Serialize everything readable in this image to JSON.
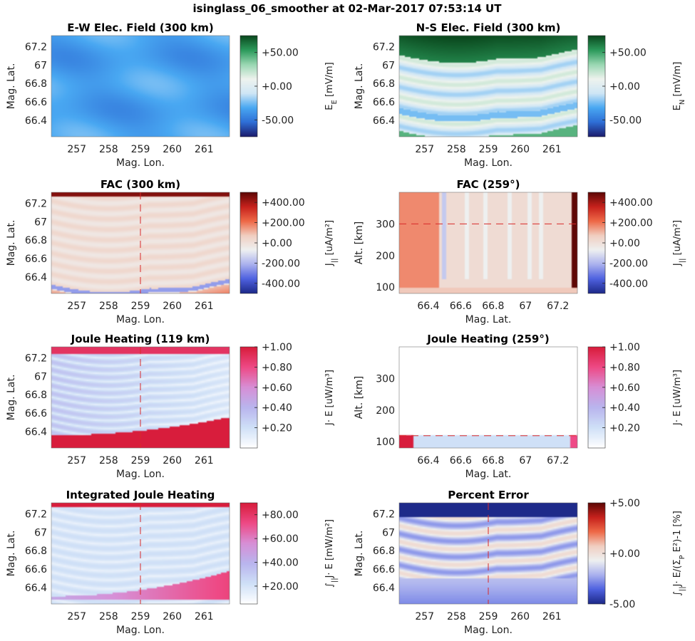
{
  "figure": {
    "title": "isinglass_06_smoother at 02-Mar-2017 07:53:14 UT"
  },
  "colors": {
    "green_div": [
      "#1c1d6e",
      "#2f6fd6",
      "#49a8f2",
      "#cfe6f5",
      "#eef3ee",
      "#9ad7b3",
      "#2c9b5c",
      "#0b4a1f"
    ],
    "red_div": [
      "#1e2a8a",
      "#4f62e0",
      "#aab1ee",
      "#eef0f0",
      "#f0cfc2",
      "#ee6a48",
      "#c8221d",
      "#5f0806"
    ],
    "pink_seq": [
      "#ffffff",
      "#cfe0f7",
      "#b9b5ee",
      "#d78fd6",
      "#ee4a86",
      "#d81d3c"
    ]
  },
  "chart_data": [
    {
      "type": "heatmap",
      "id": "ew",
      "title": "E-W Elec. Field (300 km)",
      "xlabel": "Mag. Lon.",
      "ylabel": "Mag. Lat.",
      "xticks": [
        "257",
        "258",
        "259",
        "260",
        "261"
      ],
      "xtick_values": [
        257,
        258,
        259,
        260,
        261
      ],
      "yticks": [
        "67.2",
        "67",
        "66.8",
        "66.6",
        "66.4"
      ],
      "ytick_values": [
        67.2,
        67.0,
        66.8,
        66.6,
        66.4
      ],
      "xlim": [
        256.2,
        261.8
      ],
      "ylim": [
        66.22,
        67.32
      ],
      "colorbar": {
        "label_main": "E",
        "label_sub": "E",
        "label_unit": " [mV/m]",
        "ticks": [
          "+50.00",
          "+0.00",
          "-50.00"
        ],
        "tick_values": [
          50,
          0,
          -50
        ],
        "range": [
          -75,
          75
        ],
        "palette": "green_div"
      },
      "field_note": "uniform ~ -35 mV/m"
    },
    {
      "type": "heatmap",
      "id": "ns",
      "title": "N-S Elec. Field (300 km)",
      "xlabel": "Mag. Lon.",
      "ylabel": "Mag. Lat.",
      "xticks": [
        "257",
        "258",
        "259",
        "260",
        "261"
      ],
      "xtick_values": [
        257,
        258,
        259,
        260,
        261
      ],
      "yticks": [
        "67.2",
        "67",
        "66.8",
        "66.6",
        "66.4"
      ],
      "ytick_values": [
        67.2,
        67.0,
        66.8,
        66.6,
        66.4
      ],
      "xlim": [
        256.2,
        261.8
      ],
      "ylim": [
        66.22,
        67.32
      ],
      "colorbar": {
        "label_main": "E",
        "label_sub": "N",
        "label_unit": " [mV/m]",
        "ticks": [
          "+50.00",
          "+0.00",
          "-50.00"
        ],
        "tick_values": [
          50,
          0,
          -50
        ],
        "range": [
          -75,
          75
        ],
        "palette": "green_div"
      }
    },
    {
      "type": "heatmap",
      "id": "fac300",
      "title": "FAC (300 km)",
      "xlabel": "Mag. Lon.",
      "ylabel": "Mag. Lat.",
      "xticks": [
        "257",
        "258",
        "259",
        "260",
        "261"
      ],
      "xtick_values": [
        257,
        258,
        259,
        260,
        261
      ],
      "yticks": [
        "67.2",
        "67",
        "66.8",
        "66.6",
        "66.4"
      ],
      "ytick_values": [
        67.2,
        67.0,
        66.8,
        66.6,
        66.4
      ],
      "xlim": [
        256.2,
        261.8
      ],
      "ylim": [
        66.22,
        67.32
      ],
      "cut_line": {
        "axis": "x",
        "value": 259
      },
      "colorbar": {
        "label_main": "J",
        "label_sub": "||",
        "label_unit": " [uA/m²]",
        "ticks": [
          "+400.00",
          "+200.00",
          "+0.00",
          "-200.00",
          "-400.00"
        ],
        "tick_values": [
          400,
          200,
          0,
          -200,
          -400
        ],
        "range": [
          -500,
          500
        ],
        "palette": "red_div"
      }
    },
    {
      "type": "heatmap",
      "id": "fac259",
      "title": "FAC (259°)",
      "xlabel": "Mag. Lat.",
      "ylabel": "Alt. [km]",
      "xticks": [
        "66.4",
        "66.6",
        "66.8",
        "67",
        "67.2"
      ],
      "xtick_values": [
        66.4,
        66.6,
        66.8,
        67.0,
        67.2
      ],
      "yticks": [
        "300",
        "200",
        "100"
      ],
      "ytick_values": [
        300,
        200,
        100
      ],
      "xlim": [
        66.22,
        67.32
      ],
      "ylim": [
        80,
        400
      ],
      "cut_line": {
        "axis": "y",
        "value": 300
      },
      "colorbar": {
        "label_main": "J",
        "label_sub": "||",
        "label_unit": " [uA/m²]",
        "ticks": [
          "+400.00",
          "+200.00",
          "+0.00",
          "-200.00",
          "-400.00"
        ],
        "tick_values": [
          400,
          200,
          0,
          -200,
          -400
        ],
        "range": [
          -500,
          500
        ],
        "palette": "red_div"
      }
    },
    {
      "type": "heatmap",
      "id": "jh119",
      "title": "Joule Heating (119 km)",
      "xlabel": "Mag. Lon.",
      "ylabel": "Mag. Lat.",
      "xticks": [
        "257",
        "258",
        "259",
        "260",
        "261"
      ],
      "xtick_values": [
        257,
        258,
        259,
        260,
        261
      ],
      "yticks": [
        "67.2",
        "67",
        "66.8",
        "66.6",
        "66.4"
      ],
      "ytick_values": [
        67.2,
        67.0,
        66.8,
        66.6,
        66.4
      ],
      "xlim": [
        256.2,
        261.8
      ],
      "ylim": [
        66.22,
        67.32
      ],
      "cut_line": {
        "axis": "x",
        "value": 259
      },
      "colorbar": {
        "label_main": "J· E [uW/m³]",
        "ticks": [
          "+1.00",
          "+0.80",
          "+0.60",
          "+0.40",
          "+0.20"
        ],
        "tick_values": [
          1.0,
          0.8,
          0.6,
          0.4,
          0.2
        ],
        "range": [
          0.0,
          1.0
        ],
        "palette": "pink_seq"
      }
    },
    {
      "type": "heatmap",
      "id": "jh259",
      "title": "Joule Heating (259°)",
      "xlabel": "Mag. Lat.",
      "ylabel": "Alt. [km]",
      "xticks": [
        "66.4",
        "66.6",
        "66.8",
        "67",
        "67.2"
      ],
      "xtick_values": [
        66.4,
        66.6,
        66.8,
        67.0,
        67.2
      ],
      "yticks": [
        "300",
        "200",
        "100"
      ],
      "ytick_values": [
        300,
        200,
        100
      ],
      "xlim": [
        66.22,
        67.32
      ],
      "ylim": [
        80,
        400
      ],
      "cut_line": {
        "axis": "y",
        "value": 119
      },
      "colorbar": {
        "label_main": "J· E [uW/m³]",
        "ticks": [
          "+1.00",
          "+0.80",
          "+0.60",
          "+0.40",
          "+0.20"
        ],
        "tick_values": [
          1.0,
          0.8,
          0.6,
          0.4,
          0.2
        ],
        "range": [
          0.0,
          1.0
        ],
        "palette": "pink_seq"
      }
    },
    {
      "type": "heatmap",
      "id": "ijh",
      "title": "Integrated Joule Heating",
      "xlabel": "Mag. Lon.",
      "ylabel": "Mag. Lat.",
      "xticks": [
        "257",
        "258",
        "259",
        "260",
        "261"
      ],
      "xtick_values": [
        257,
        258,
        259,
        260,
        261
      ],
      "yticks": [
        "67.2",
        "67",
        "66.8",
        "66.6",
        "66.4"
      ],
      "ytick_values": [
        67.2,
        67.0,
        66.8,
        66.6,
        66.4
      ],
      "xlim": [
        256.2,
        261.8
      ],
      "ylim": [
        66.22,
        67.32
      ],
      "cut_line": {
        "axis": "x",
        "value": 259
      },
      "colorbar": {
        "label_main": "∫",
        "label_sub": "||",
        "label_unit": "J· E [mW/m²]",
        "ticks": [
          "+80.00",
          "+60.00",
          "+40.00",
          "+20.00"
        ],
        "tick_values": [
          80,
          60,
          40,
          20
        ],
        "range": [
          5,
          90
        ],
        "palette": "pink_seq"
      }
    },
    {
      "type": "heatmap",
      "id": "perr",
      "title": "Percent Error",
      "xlabel": "Mag. Lon.",
      "ylabel": "Mag. Lat.",
      "xticks": [
        "257",
        "258",
        "259",
        "260",
        "261"
      ],
      "xtick_values": [
        257,
        258,
        259,
        260,
        261
      ],
      "yticks": [
        "67.2",
        "67",
        "66.8",
        "66.6",
        "66.4"
      ],
      "ytick_values": [
        67.2,
        67.0,
        66.8,
        66.6,
        66.4
      ],
      "xlim": [
        256.2,
        261.8
      ],
      "ylim": [
        66.22,
        67.32
      ],
      "cut_line": {
        "axis": "x",
        "value": 259
      },
      "colorbar": {
        "label_main": "∫",
        "label_sub": "||",
        "label_unit": "J· E/(Σ",
        "label_sub2": "P",
        "label_tail": " E²)-1 [%]",
        "ticks": [
          "+5.00",
          "+0.00",
          "-5.00"
        ],
        "tick_values": [
          5,
          0,
          -5
        ],
        "range": [
          -5,
          5
        ],
        "palette": "red_div"
      }
    }
  ]
}
